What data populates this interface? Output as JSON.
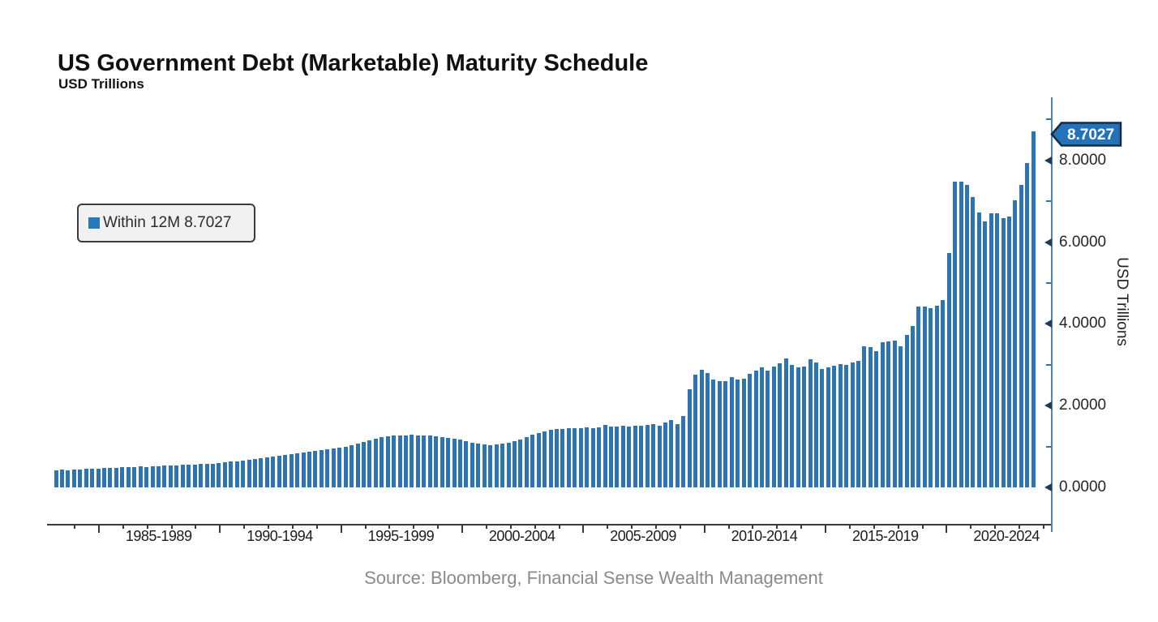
{
  "header": {
    "title": "US Government Debt (Marketable) Maturity Schedule",
    "subtitle": "USD Trillions"
  },
  "legend": {
    "label": "Within 12M 8.7027",
    "marker_color": "#2878ba"
  },
  "callout": {
    "value": "8.7027",
    "fill_color": "#2472bb"
  },
  "y_axis": {
    "title": "USD Trillions",
    "tick_labels": [
      "0.0000",
      "2.0000",
      "4.0000",
      "6.0000",
      "8.0000"
    ],
    "tick_values": [
      0,
      2,
      4,
      6,
      8
    ],
    "minor_tick_values": [
      1,
      3,
      5,
      7,
      9
    ]
  },
  "x_axis": {
    "labels": [
      "1985-1989",
      "1990-1994",
      "1995-1999",
      "2000-2004",
      "2005-2009",
      "2010-2014",
      "2015-2019",
      "2020-2024"
    ]
  },
  "footer": {
    "source": "Source: Bloomberg, Financial Sense Wealth Management"
  },
  "chart_data": {
    "type": "bar",
    "title": "US Government Debt (Marketable) Maturity Schedule",
    "ylabel": "USD Trillions",
    "ylim": [
      0,
      9.5
    ],
    "grid": false,
    "legend_position": "upper-left",
    "bar_color": "#2d74b3",
    "x_period_labels": [
      "1985-1989",
      "1990-1994",
      "1995-1999",
      "2000-2004",
      "2005-2009",
      "2010-2014",
      "2015-2019",
      "2020-2024"
    ],
    "frequency_hint": "quarterly bars, ~1983 through 2024",
    "last_value": 8.7027,
    "series": [
      {
        "name": "Within 12M",
        "values": [
          0.42,
          0.43,
          0.42,
          0.44,
          0.43,
          0.45,
          0.45,
          0.46,
          0.47,
          0.48,
          0.47,
          0.49,
          0.49,
          0.5,
          0.51,
          0.5,
          0.52,
          0.52,
          0.53,
          0.54,
          0.53,
          0.55,
          0.55,
          0.56,
          0.57,
          0.57,
          0.58,
          0.59,
          0.61,
          0.63,
          0.64,
          0.66,
          0.68,
          0.7,
          0.72,
          0.74,
          0.76,
          0.78,
          0.8,
          0.82,
          0.84,
          0.85,
          0.87,
          0.89,
          0.91,
          0.93,
          0.95,
          0.97,
          1.0,
          1.04,
          1.08,
          1.12,
          1.16,
          1.2,
          1.23,
          1.25,
          1.26,
          1.27,
          1.26,
          1.28,
          1.27,
          1.27,
          1.26,
          1.25,
          1.24,
          1.22,
          1.2,
          1.18,
          1.14,
          1.1,
          1.07,
          1.05,
          1.04,
          1.05,
          1.07,
          1.1,
          1.14,
          1.18,
          1.23,
          1.28,
          1.33,
          1.37,
          1.4,
          1.42,
          1.43,
          1.44,
          1.45,
          1.44,
          1.46,
          1.45,
          1.47,
          1.52,
          1.48,
          1.49,
          1.5,
          1.49,
          1.51,
          1.5,
          1.52,
          1.55,
          1.5,
          1.58,
          1.65,
          1.55,
          1.75,
          2.4,
          2.75,
          2.87,
          2.8,
          2.64,
          2.59,
          2.6,
          2.7,
          2.63,
          2.65,
          2.77,
          2.86,
          2.93,
          2.85,
          2.96,
          3.04,
          3.16,
          3.0,
          2.93,
          2.96,
          3.13,
          3.06,
          2.9,
          2.94,
          2.98,
          3.01,
          3.0,
          3.06,
          3.1,
          3.46,
          3.43,
          3.33,
          3.56,
          3.58,
          3.6,
          3.46,
          3.73,
          3.95,
          4.42,
          4.42,
          4.38,
          4.45,
          4.58,
          5.74,
          7.49,
          7.49,
          7.41,
          7.11,
          6.72,
          6.51,
          6.71,
          6.7,
          6.59,
          6.63,
          7.02,
          7.41,
          7.93,
          8.7027
        ]
      }
    ]
  }
}
